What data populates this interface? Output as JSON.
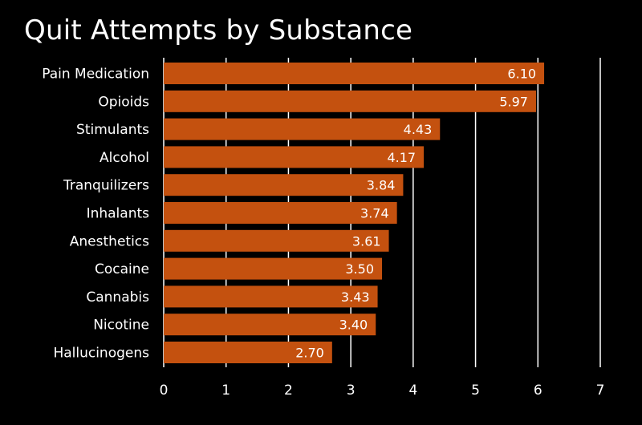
{
  "chart_data": {
    "type": "bar",
    "orientation": "horizontal",
    "title": "Quit Attempts by Substance",
    "xlabel": "",
    "ylabel": "",
    "categories": [
      "Pain Medication",
      "Opioids",
      "Stimulants",
      "Alcohol",
      "Tranquilizers",
      "Inhalants",
      "Anesthetics",
      "Cocaine",
      "Cannabis",
      "Nicotine",
      "Hallucinogens"
    ],
    "values": [
      6.1,
      5.97,
      4.43,
      4.17,
      3.84,
      3.74,
      3.61,
      3.5,
      3.43,
      3.4,
      2.7
    ],
    "value_labels": [
      "6.10",
      "5.97",
      "4.43",
      "4.17",
      "3.84",
      "3.74",
      "3.61",
      "3.50",
      "3.43",
      "3.40",
      "2.70"
    ],
    "xlim": [
      0,
      7
    ],
    "xticks": [
      "0",
      "1",
      "2",
      "3",
      "4",
      "5",
      "6",
      "7"
    ],
    "grid": "vertical",
    "legend": "none",
    "colors": {
      "bar": "#c4510f",
      "background": "#000000",
      "text": "#ffffff",
      "grid": "#ffffff"
    }
  }
}
